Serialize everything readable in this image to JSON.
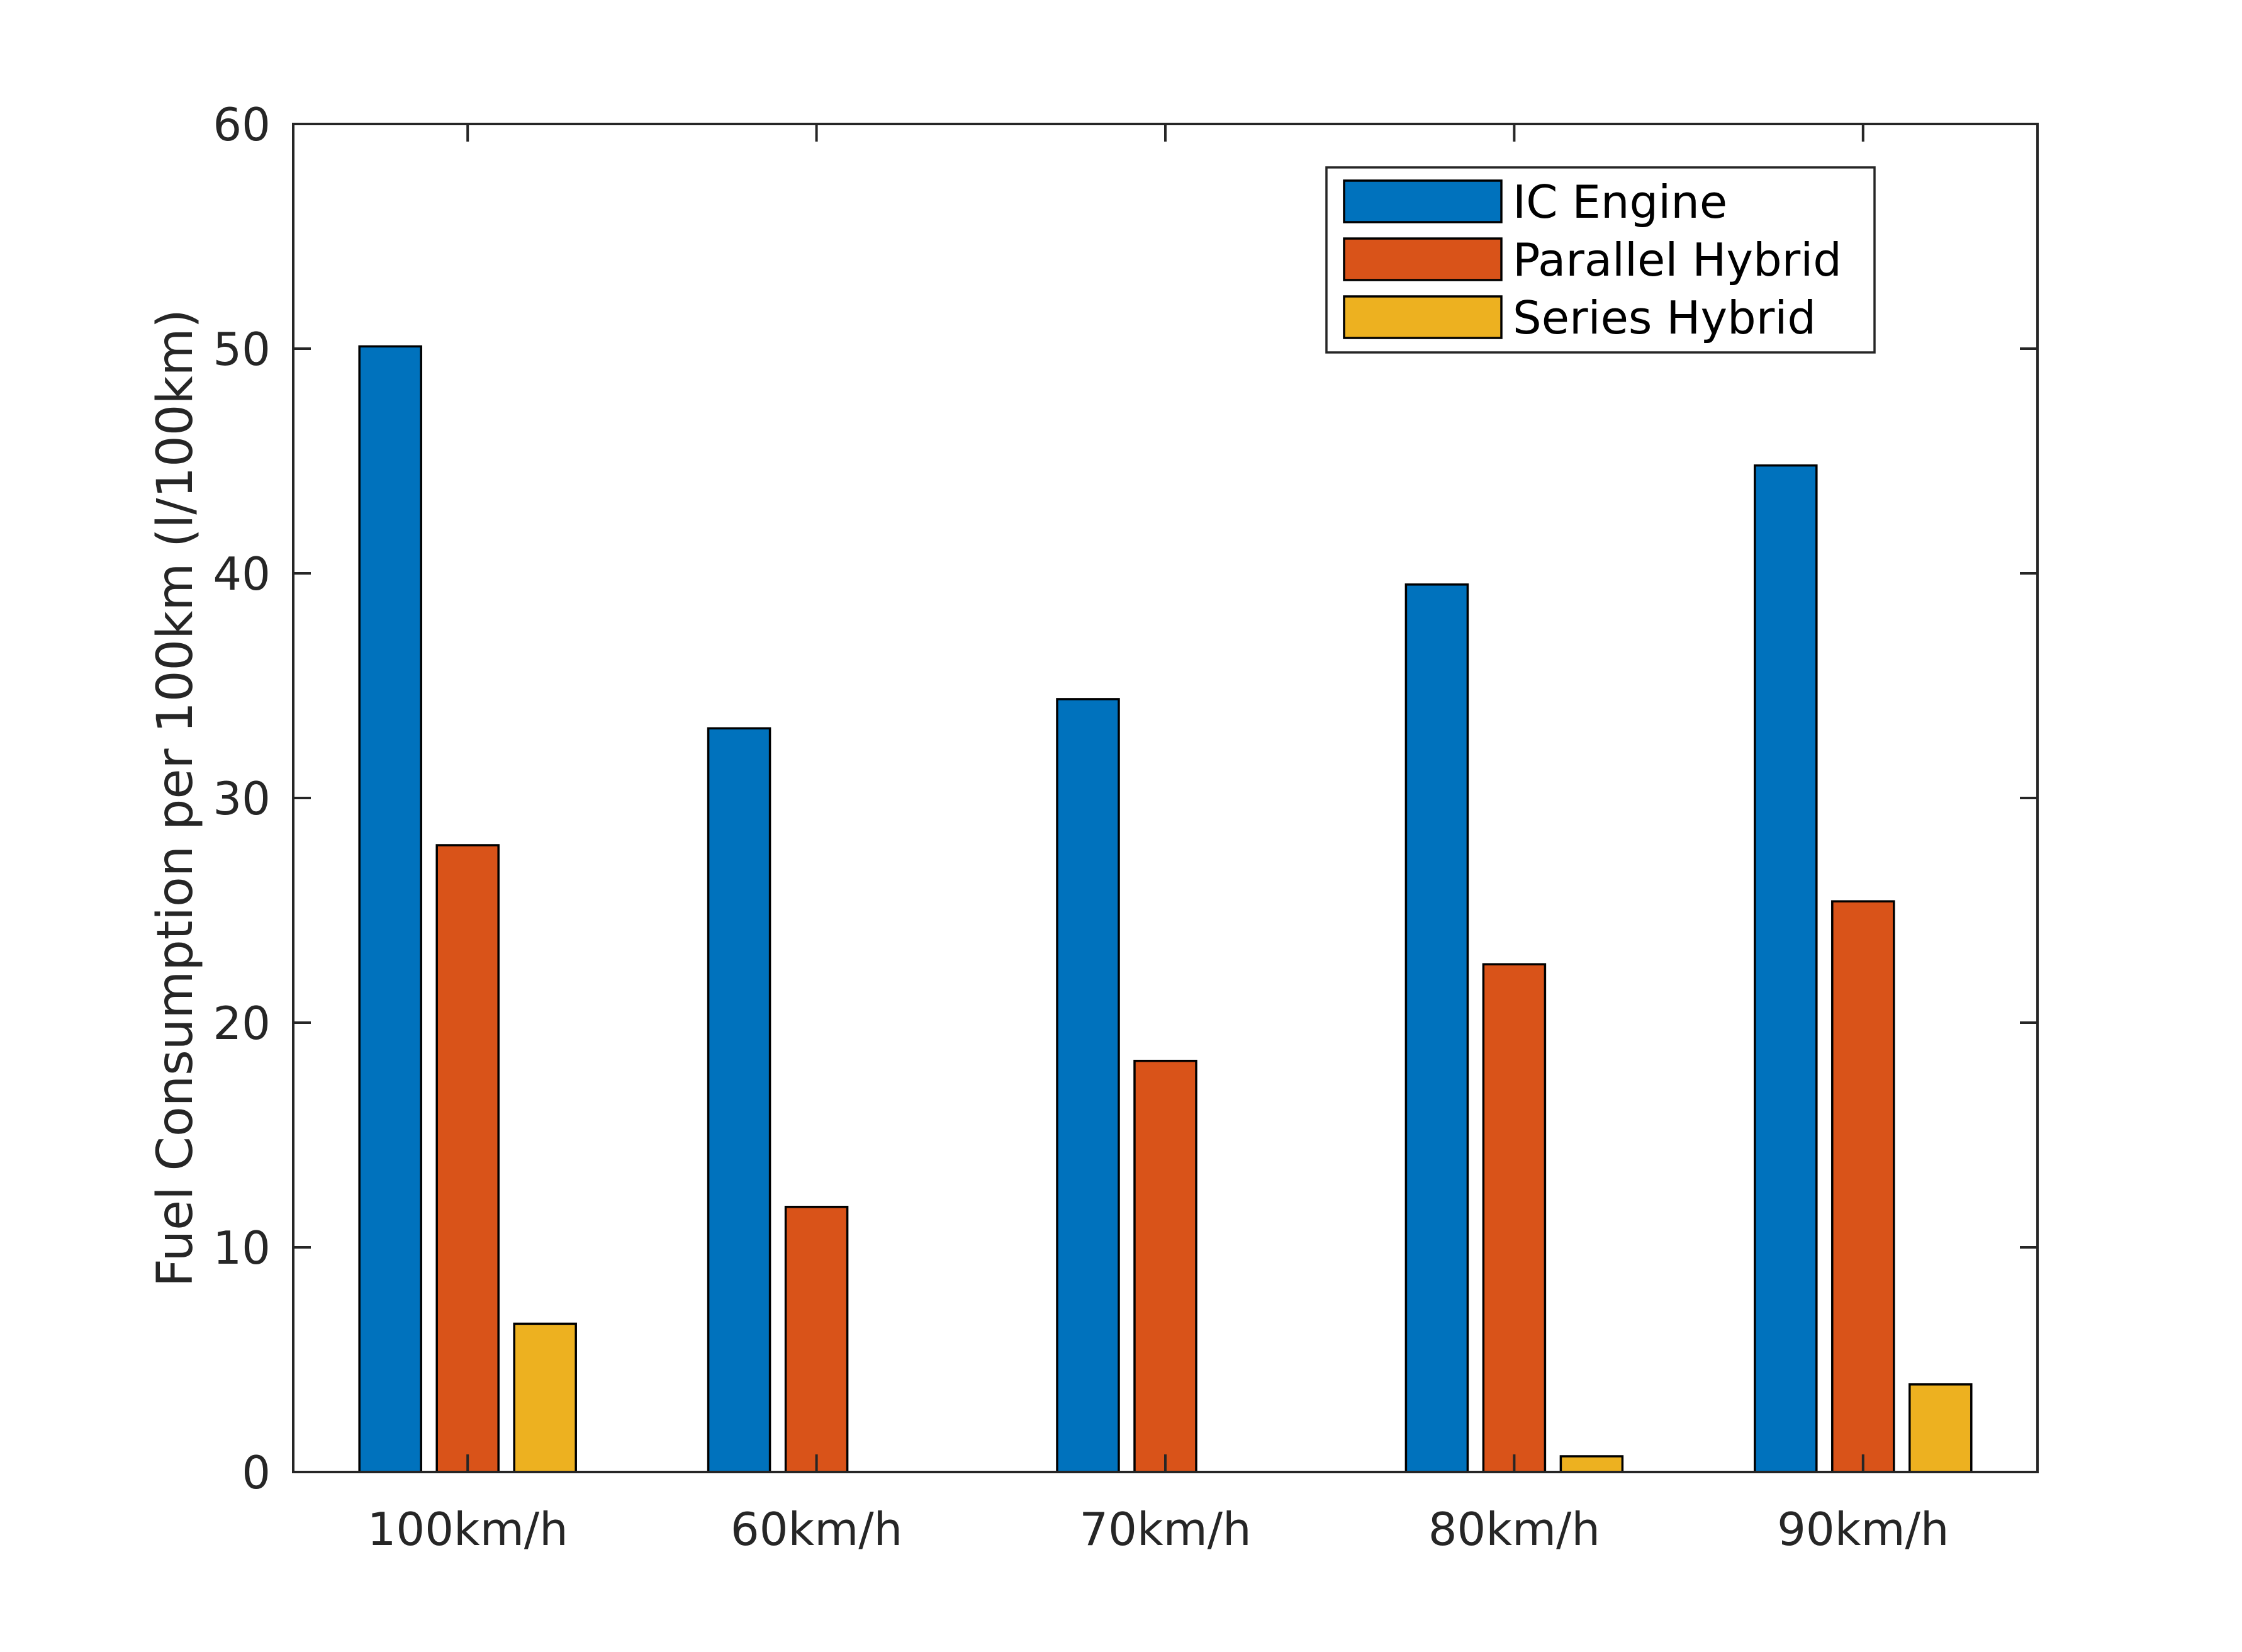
{
  "chart_data": {
    "type": "bar",
    "title": "",
    "xlabel": "",
    "ylabel": "Fuel Consumption per 100km (l/100km)",
    "categories": [
      "100km/h",
      "60km/h",
      "70km/h",
      "80km/h",
      "90km/h"
    ],
    "ylim": [
      0,
      60
    ],
    "yticks": [
      0,
      10,
      20,
      30,
      40,
      50,
      60
    ],
    "grid": false,
    "legend_position": "top-right",
    "series": [
      {
        "name": "IC Engine",
        "color": "#0072BD",
        "values": [
          50.1,
          33.1,
          34.4,
          39.5,
          44.8
        ]
      },
      {
        "name": "Parallel Hybrid",
        "color": "#D95319",
        "values": [
          27.9,
          11.8,
          18.3,
          22.6,
          25.4
        ]
      },
      {
        "name": "Series Hybrid",
        "color": "#EDB120",
        "values": [
          6.6,
          0,
          0,
          0.7,
          3.9
        ]
      }
    ]
  }
}
